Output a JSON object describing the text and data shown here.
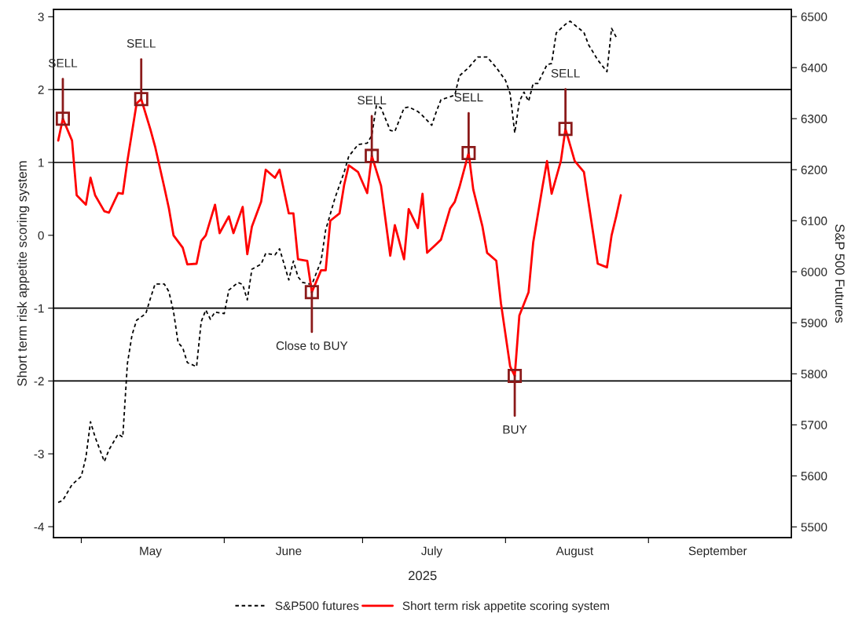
{
  "chart_data": {
    "type": "line",
    "ylabel": "Short term risk appetite scoring system",
    "y2label": "S&P 500 Futures",
    "xlabel": "2025",
    "xlim": [
      "2025-04-25",
      "2025-10-02"
    ],
    "xticks": [
      {
        "value": "2025-05-01",
        "label": null
      },
      {
        "value": "2025-06-01",
        "label": null
      },
      {
        "value": "2025-07-01",
        "label": null
      },
      {
        "value": "2025-08-01",
        "label": null
      },
      {
        "value": "2025-09-01",
        "label": null
      },
      {
        "value": "2025-05-16",
        "label": "May"
      },
      {
        "value": "2025-06-15",
        "label": "June"
      },
      {
        "value": "2025-07-16",
        "label": "July"
      },
      {
        "value": "2025-08-16",
        "label": "August"
      },
      {
        "value": "2025-09-16",
        "label": "September"
      }
    ],
    "ylim": [
      -4.15,
      3.1
    ],
    "yticks": [
      -4,
      -3,
      -2,
      -1,
      0,
      1,
      2,
      3
    ],
    "y2lim": [
      5479,
      6514
    ],
    "y2ticks": [
      5500,
      5600,
      5700,
      5800,
      5900,
      6000,
      6100,
      6200,
      6300,
      6400,
      6500
    ],
    "grid": false,
    "legend": "bottom",
    "series": [
      {
        "name": "S&P500 futures",
        "color": "#000000",
        "axis": "y2",
        "line_style": "dashed",
        "x": [
          "2025-04-26",
          "2025-04-27",
          "2025-04-29",
          "2025-05-01",
          "2025-05-02",
          "2025-05-03",
          "2025-05-04",
          "2025-05-06",
          "2025-05-07",
          "2025-05-09",
          "2025-05-10",
          "2025-05-11",
          "2025-05-12",
          "2025-05-13",
          "2025-05-15",
          "2025-05-16",
          "2025-05-17",
          "2025-05-19",
          "2025-05-20",
          "2025-05-21",
          "2025-05-22",
          "2025-05-23",
          "2025-05-24",
          "2025-05-26",
          "2025-05-27",
          "2025-05-28",
          "2025-05-29",
          "2025-05-30",
          "2025-06-01",
          "2025-06-02",
          "2025-06-04",
          "2025-06-05",
          "2025-06-06",
          "2025-06-07",
          "2025-06-09",
          "2025-06-10",
          "2025-06-12",
          "2025-06-13",
          "2025-06-15",
          "2025-06-16",
          "2025-06-17",
          "2025-06-18",
          "2025-06-20",
          "2025-06-22",
          "2025-06-23",
          "2025-06-25",
          "2025-06-27",
          "2025-06-28",
          "2025-06-30",
          "2025-07-02",
          "2025-07-03",
          "2025-07-04",
          "2025-07-05",
          "2025-07-07",
          "2025-07-08",
          "2025-07-10",
          "2025-07-11",
          "2025-07-13",
          "2025-07-14",
          "2025-07-16",
          "2025-07-17",
          "2025-07-18",
          "2025-07-21",
          "2025-07-22",
          "2025-07-24",
          "2025-07-26",
          "2025-07-28",
          "2025-07-30",
          "2025-08-01",
          "2025-08-02",
          "2025-08-03",
          "2025-08-04",
          "2025-08-05",
          "2025-08-06",
          "2025-08-07",
          "2025-08-08",
          "2025-08-10",
          "2025-08-11",
          "2025-08-12",
          "2025-08-14",
          "2025-08-15",
          "2025-08-18",
          "2025-08-19",
          "2025-08-21",
          "2025-08-23",
          "2025-08-24",
          "2025-08-25"
        ],
        "values": [
          5548,
          5552,
          5583,
          5599,
          5636,
          5706,
          5676,
          5628,
          5651,
          5682,
          5676,
          5820,
          5876,
          5905,
          5918,
          5948,
          5976,
          5976,
          5961,
          5922,
          5861,
          5851,
          5822,
          5814,
          5902,
          5925,
          5907,
          5921,
          5918,
          5964,
          5979,
          5975,
          5945,
          6005,
          6015,
          6036,
          6033,
          6045,
          5984,
          6021,
          5990,
          5979,
          5975,
          6021,
          6082,
          6144,
          6195,
          6226,
          6249,
          6252,
          6267,
          6326,
          6321,
          6277,
          6275,
          6321,
          6323,
          6314,
          6306,
          6287,
          6314,
          6337,
          6346,
          6384,
          6400,
          6421,
          6421,
          6400,
          6375,
          6349,
          6272,
          6334,
          6352,
          6334,
          6369,
          6369,
          6406,
          6408,
          6468,
          6485,
          6491,
          6469,
          6445,
          6415,
          6392,
          6477,
          6460
        ]
      },
      {
        "name": "Short term risk appetite scoring system",
        "color": "#ff0000",
        "line_style": "solid",
        "x": [
          "2025-04-26",
          "2025-04-27",
          "2025-04-29",
          "2025-04-30",
          "2025-05-02",
          "2025-05-03",
          "2025-05-04",
          "2025-05-06",
          "2025-05-07",
          "2025-05-09",
          "2025-05-10",
          "2025-05-11",
          "2025-05-13",
          "2025-05-14",
          "2025-05-16",
          "2025-05-17",
          "2025-05-19",
          "2025-05-20",
          "2025-05-21",
          "2025-05-23",
          "2025-05-24",
          "2025-05-26",
          "2025-05-27",
          "2025-05-28",
          "2025-05-30",
          "2025-05-31",
          "2025-06-02",
          "2025-06-03",
          "2025-06-05",
          "2025-06-06",
          "2025-06-07",
          "2025-06-09",
          "2025-06-10",
          "2025-06-12",
          "2025-06-13",
          "2025-06-15",
          "2025-06-16",
          "2025-06-17",
          "2025-06-19",
          "2025-06-20",
          "2025-06-22",
          "2025-06-23",
          "2025-06-24",
          "2025-06-26",
          "2025-06-27",
          "2025-06-28",
          "2025-06-30",
          "2025-07-02",
          "2025-07-03",
          "2025-07-05",
          "2025-07-07",
          "2025-07-08",
          "2025-07-10",
          "2025-07-11",
          "2025-07-13",
          "2025-07-14",
          "2025-07-15",
          "2025-07-17",
          "2025-07-18",
          "2025-07-20",
          "2025-07-21",
          "2025-07-22",
          "2025-07-24",
          "2025-07-25",
          "2025-07-27",
          "2025-07-28",
          "2025-07-30",
          "2025-07-31",
          "2025-08-02",
          "2025-08-03",
          "2025-08-04",
          "2025-08-06",
          "2025-08-07",
          "2025-08-09",
          "2025-08-10",
          "2025-08-11",
          "2025-08-13",
          "2025-08-14",
          "2025-08-16",
          "2025-08-18",
          "2025-08-21",
          "2025-08-23",
          "2025-08-24",
          "2025-08-25",
          "2025-08-26"
        ],
        "values": [
          1.3,
          1.6,
          1.3,
          0.55,
          0.42,
          0.79,
          0.55,
          0.33,
          0.31,
          0.58,
          0.57,
          1.02,
          1.81,
          1.87,
          1.45,
          1.22,
          0.66,
          0.37,
          0.0,
          -0.17,
          -0.4,
          -0.39,
          -0.08,
          0.0,
          0.42,
          0.03,
          0.26,
          0.03,
          0.39,
          -0.26,
          0.12,
          0.46,
          0.9,
          0.79,
          0.9,
          0.3,
          0.3,
          -0.33,
          -0.35,
          -0.78,
          -0.48,
          -0.48,
          0.2,
          0.3,
          0.69,
          0.96,
          0.87,
          0.58,
          1.09,
          0.68,
          -0.28,
          0.14,
          -0.33,
          0.36,
          0.1,
          0.57,
          -0.24,
          -0.12,
          -0.06,
          0.37,
          0.46,
          0.66,
          1.13,
          0.63,
          0.12,
          -0.24,
          -0.35,
          -0.93,
          -1.8,
          -1.93,
          -1.1,
          -0.78,
          -0.1,
          0.66,
          1.02,
          0.57,
          1.02,
          1.46,
          1.02,
          0.87,
          -0.39,
          -0.44,
          0.0,
          0.26,
          0.55
        ]
      }
    ],
    "ref_lines": [
      {
        "axis": "y",
        "value": 2,
        "color": "#000000"
      },
      {
        "axis": "y",
        "value": 1,
        "color": "#000000"
      },
      {
        "axis": "y",
        "value": -1,
        "color": "#000000"
      },
      {
        "axis": "y",
        "value": -2,
        "color": "#000000"
      }
    ],
    "annotations": [
      {
        "text": "SELL",
        "x": "2025-04-27",
        "y": 1.6
      },
      {
        "text": "SELL",
        "x": "2025-05-14",
        "y": 1.87
      },
      {
        "text": "Close to BUY",
        "x": "2025-06-20",
        "y": -0.78
      },
      {
        "text": "SELL",
        "x": "2025-07-03",
        "y": 1.09
      },
      {
        "text": "SELL",
        "x": "2025-07-24",
        "y": 1.13
      },
      {
        "text": "BUY",
        "x": "2025-08-03",
        "y": -1.93
      },
      {
        "text": "SELL",
        "x": "2025-08-14",
        "y": 1.46
      }
    ]
  }
}
